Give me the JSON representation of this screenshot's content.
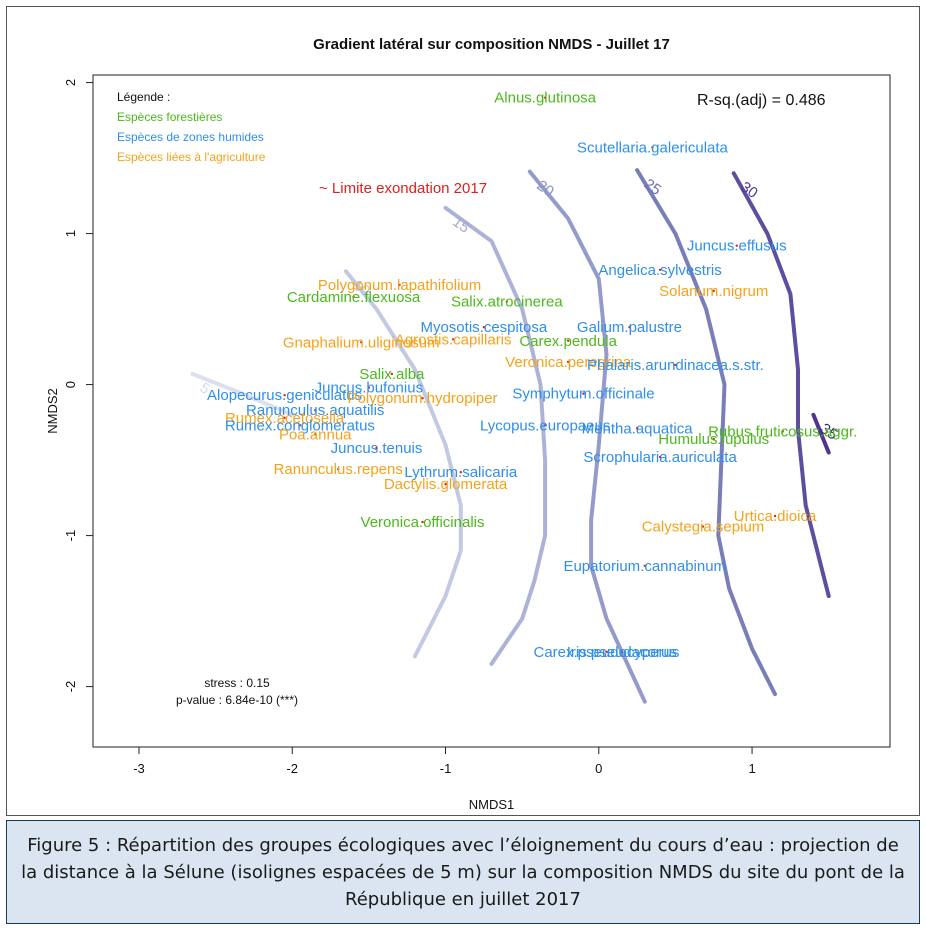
{
  "caption": "Figure 5 : Répartition des groupes écologiques avec l’éloignement du cours d’eau : projection de la distance à la Sélune (isolignes espacées de 5 m) sur la composition NMDS du site du pont de la République en juillet 2017",
  "chart_data": {
    "type": "scatter",
    "title": "Gradient latéral sur composition NMDS - Juillet 17",
    "xlabel": "NMDS1",
    "ylabel": "NMDS2",
    "xlim": [
      -3.3,
      1.9
    ],
    "ylim": [
      -2.4,
      2.05
    ],
    "xticks": [
      -3,
      -2,
      -1,
      0,
      1
    ],
    "yticks": [
      -2,
      -1,
      0,
      1,
      2
    ],
    "r_squared": "R-sq.(adj) = 0.486",
    "limit_label": "~ Limite exondation 2017",
    "stress": "stress : 0.15",
    "pvalue": "p-value : 6.84e-10 (***)",
    "legend": {
      "title": "Légende :",
      "position": "top-left",
      "groups": [
        {
          "label": "Espèces forestières",
          "color": "#4cb81c"
        },
        {
          "label": "Espèces de zones humides",
          "color": "#2f8fea"
        },
        {
          "label": "Espèces liées à l'agriculture",
          "color": "#f5a21b"
        }
      ]
    },
    "contours": [
      {
        "level": "5",
        "color": "#d7dcec",
        "points": [
          [
            -2.65,
            0.07
          ],
          [
            -2.35,
            -0.05
          ],
          [
            -2.0,
            -0.2
          ]
        ]
      },
      {
        "level": "10",
        "color": "#bcc3df",
        "points": [
          [
            -1.65,
            0.75
          ],
          [
            -1.45,
            0.5
          ],
          [
            -1.2,
            0.1
          ],
          [
            -1.0,
            -0.4
          ],
          [
            -0.9,
            -0.8
          ],
          [
            -0.9,
            -1.1
          ],
          [
            -1.0,
            -1.4
          ],
          [
            -1.2,
            -1.8
          ]
        ]
      },
      {
        "level": "15",
        "color": "#a4abd3",
        "points": [
          [
            -1.0,
            1.17
          ],
          [
            -0.7,
            0.95
          ],
          [
            -0.5,
            0.5
          ],
          [
            -0.38,
            0.0
          ],
          [
            -0.35,
            -0.5
          ],
          [
            -0.35,
            -1.0
          ],
          [
            -0.42,
            -1.3
          ],
          [
            -0.5,
            -1.55
          ],
          [
            -0.7,
            -1.85
          ]
        ]
      },
      {
        "level": "20",
        "color": "#8890c5",
        "points": [
          [
            -0.45,
            1.41
          ],
          [
            -0.2,
            1.1
          ],
          [
            0.0,
            0.7
          ],
          [
            0.05,
            0.2
          ],
          [
            0.0,
            -0.4
          ],
          [
            -0.05,
            -0.9
          ],
          [
            -0.05,
            -1.2
          ],
          [
            0.05,
            -1.55
          ],
          [
            0.3,
            -2.1
          ]
        ]
      },
      {
        "level": "25",
        "color": "#6a70b0",
        "points": [
          [
            0.25,
            1.42
          ],
          [
            0.5,
            1.0
          ],
          [
            0.7,
            0.5
          ],
          [
            0.82,
            0.0
          ],
          [
            0.8,
            -0.5
          ],
          [
            0.78,
            -1.0
          ],
          [
            0.85,
            -1.35
          ],
          [
            1.0,
            -1.75
          ],
          [
            1.15,
            -2.05
          ]
        ]
      },
      {
        "level": "30",
        "color": "#4e3a96",
        "points": [
          [
            0.88,
            1.4
          ],
          [
            1.1,
            1.0
          ],
          [
            1.25,
            0.6
          ],
          [
            1.3,
            0.1
          ],
          [
            1.3,
            -0.3
          ],
          [
            1.35,
            -0.8
          ],
          [
            1.45,
            -1.2
          ],
          [
            1.5,
            -1.4
          ]
        ]
      },
      {
        "level": "35",
        "color": "#3d1f80",
        "points": [
          [
            1.4,
            -0.2
          ],
          [
            1.5,
            -0.45
          ]
        ]
      }
    ],
    "species": [
      {
        "name": "Alnus.glutinosa",
        "group": 0,
        "x": -0.35,
        "y": 1.9
      },
      {
        "name": "Scutellaria.galericulata",
        "group": 1,
        "x": 0.35,
        "y": 1.57
      },
      {
        "name": "Juncus.effusus",
        "group": 1,
        "x": 0.9,
        "y": 0.92
      },
      {
        "name": "Angelica.sylvestris",
        "group": 1,
        "x": 0.4,
        "y": 0.76
      },
      {
        "name": "Solanum.nigrum",
        "group": 2,
        "x": 0.75,
        "y": 0.62
      },
      {
        "name": "Polygonum.lapathifolium",
        "group": 2,
        "x": -1.3,
        "y": 0.66
      },
      {
        "name": "Cardamine.flexuosa",
        "group": 0,
        "x": -1.6,
        "y": 0.58
      },
      {
        "name": "Salix.atrocinerea",
        "group": 0,
        "x": -0.6,
        "y": 0.55
      },
      {
        "name": "Myosotis.cespitosa",
        "group": 1,
        "x": -0.75,
        "y": 0.38
      },
      {
        "name": "Galium.palustre",
        "group": 1,
        "x": 0.2,
        "y": 0.38
      },
      {
        "name": "Gnaphalium.uliginosum",
        "group": 2,
        "x": -1.55,
        "y": 0.28
      },
      {
        "name": "Agrostis.capillaris",
        "group": 2,
        "x": -0.95,
        "y": 0.3
      },
      {
        "name": "Carex.pendula",
        "group": 0,
        "x": -0.2,
        "y": 0.29
      },
      {
        "name": "Veronica.peregrina",
        "group": 2,
        "x": -0.2,
        "y": 0.15
      },
      {
        "name": "Phalaris.arundinacea.s.str.",
        "group": 1,
        "x": 0.5,
        "y": 0.13
      },
      {
        "name": "Salix.alba",
        "group": 0,
        "x": -1.35,
        "y": 0.07
      },
      {
        "name": "Juncus.bufonius",
        "group": 1,
        "x": -1.5,
        "y": -0.02
      },
      {
        "name": "Alopecurus.geniculatus",
        "group": 1,
        "x": -2.05,
        "y": -0.07
      },
      {
        "name": "Polygonum.hydropiper",
        "group": 2,
        "x": -1.15,
        "y": -0.09
      },
      {
        "name": "Symphytum.officinale",
        "group": 1,
        "x": -0.1,
        "y": -0.06
      },
      {
        "name": "Ranunculus.aquatilis",
        "group": 1,
        "x": -1.85,
        "y": -0.17
      },
      {
        "name": "Rumex.acetosella",
        "group": 2,
        "x": -2.05,
        "y": -0.22
      },
      {
        "name": "Rumex.conglomeratus",
        "group": 1,
        "x": -1.95,
        "y": -0.27
      },
      {
        "name": "Lycopus.europaeus",
        "group": 1,
        "x": -0.35,
        "y": -0.27
      },
      {
        "name": "Mentha.aquatica",
        "group": 1,
        "x": 0.25,
        "y": -0.29
      },
      {
        "name": "Rubus.fruticosus.aggr.",
        "group": 0,
        "x": 1.2,
        "y": -0.31
      },
      {
        "name": "Poa.annua",
        "group": 2,
        "x": -1.85,
        "y": -0.33
      },
      {
        "name": "Humulus.lupulus",
        "group": 0,
        "x": 0.75,
        "y": -0.36
      },
      {
        "name": "Juncus.tenuis",
        "group": 1,
        "x": -1.45,
        "y": -0.42
      },
      {
        "name": "Scrophularia.auriculata",
        "group": 1,
        "x": 0.4,
        "y": -0.48
      },
      {
        "name": "Lythrum.salicaria",
        "group": 1,
        "x": -0.9,
        "y": -0.58
      },
      {
        "name": "Ranunculus.repens",
        "group": 2,
        "x": -1.7,
        "y": -0.56
      },
      {
        "name": "Dactylis.glomerata",
        "group": 2,
        "x": -1.0,
        "y": -0.66
      },
      {
        "name": "Veronica.officinalis",
        "group": 0,
        "x": -1.15,
        "y": -0.91
      },
      {
        "name": "Urtica.dioica",
        "group": 2,
        "x": 1.15,
        "y": -0.87
      },
      {
        "name": "Calystegia.sepium",
        "group": 2,
        "x": 0.68,
        "y": -0.94
      },
      {
        "name": "Eupatorium.cannabinum",
        "group": 1,
        "x": 0.3,
        "y": -1.2
      },
      {
        "name": "Iris.pseudacorus",
        "group": 1,
        "x": 0.15,
        "y": -1.77
      },
      {
        "name": "Carex.pseudocyperus",
        "group": 1,
        "x": 0.05,
        "y": -1.77
      }
    ]
  }
}
